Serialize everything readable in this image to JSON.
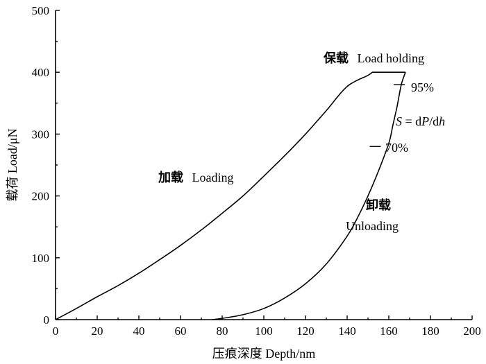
{
  "chart_data": {
    "type": "line",
    "xlabel": "压痕深度 Depth/nm",
    "ylabel": "载荷 Load/μN",
    "xlim": [
      0,
      200
    ],
    "ylim": [
      0,
      500
    ],
    "xticks": [
      0,
      20,
      40,
      60,
      80,
      100,
      120,
      140,
      160,
      180,
      200
    ],
    "yticks": [
      0,
      100,
      200,
      300,
      400,
      500
    ],
    "grid": false,
    "series": [
      {
        "name": "Loading",
        "x": [
          0,
          10,
          20,
          30,
          40,
          50,
          60,
          70,
          80,
          90,
          100,
          110,
          120,
          130,
          140,
          150,
          152
        ],
        "y": [
          0,
          18,
          37,
          55,
          75,
          97,
          120,
          145,
          172,
          200,
          232,
          265,
          300,
          338,
          377,
          395,
          400
        ]
      },
      {
        "name": "Load holding",
        "x": [
          152,
          160,
          168
        ],
        "y": [
          400,
          400,
          400
        ]
      },
      {
        "name": "Unloading",
        "x": [
          168,
          166,
          164,
          162,
          160,
          155,
          150,
          145,
          140,
          130,
          120,
          110,
          100,
          90,
          80,
          75
        ],
        "y": [
          400,
          380,
          345,
          315,
          285,
          240,
          200,
          165,
          135,
          90,
          58,
          35,
          18,
          8,
          2,
          0
        ]
      }
    ],
    "annotations": [
      {
        "cn": "保载",
        "en": "Load holding",
        "x": 152,
        "y": 418
      },
      {
        "cn": "加载",
        "en": "Loading",
        "x": 50,
        "y": 228
      },
      {
        "cn": "卸载",
        "en": "Unloading",
        "x": 140,
        "y": 183
      },
      {
        "label": "95%",
        "x": 165,
        "y": 380
      },
      {
        "label": "70%",
        "x": 153.5,
        "y": 280
      },
      {
        "label": "S = dP/dh"
      }
    ]
  }
}
